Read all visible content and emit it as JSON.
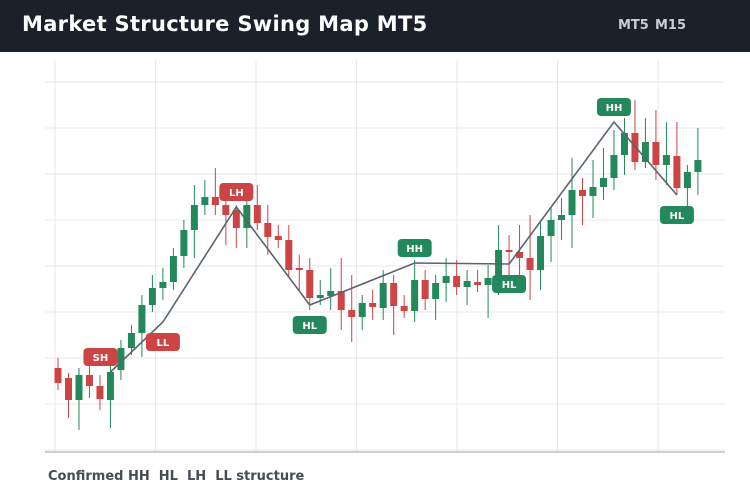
{
  "header": {
    "title": "Market Structure Swing Map MT5",
    "timeframes": [
      "MT5",
      "M15"
    ]
  },
  "footer": "Confirmed HH  HL  LH  LL structure",
  "chart_data": {
    "type": "candlestick",
    "grid": true,
    "ylim": [
      0,
      392
    ],
    "up_color": "#23885a",
    "down_color": "#cc4444",
    "line_color": "#5a6470",
    "open": [
      84,
      74,
      52,
      77,
      66,
      52,
      82,
      104,
      119,
      147,
      164,
      170,
      196,
      222,
      247,
      255,
      247,
      242,
      224,
      247,
      229,
      216,
      212,
      184,
      182,
      154,
      156,
      161,
      142,
      135,
      149,
      144,
      169,
      146,
      141,
      172,
      153,
      169,
      176,
      165,
      170,
      167,
      172,
      202,
      200,
      194,
      182,
      216,
      232,
      237,
      262,
      256,
      265,
      274,
      297,
      319,
      290,
      310,
      287,
      296,
      264,
      280
    ],
    "high": [
      94,
      79,
      84,
      87,
      77,
      87,
      112,
      127,
      157,
      177,
      184,
      204,
      232,
      267,
      272,
      284,
      262,
      247,
      257,
      267,
      247,
      227,
      227,
      197,
      194,
      172,
      184,
      194,
      177,
      157,
      162,
      182,
      177,
      157,
      192,
      182,
      177,
      194,
      192,
      182,
      182,
      187,
      227,
      217,
      227,
      237,
      230,
      244,
      254,
      294,
      274,
      292,
      304,
      322,
      334,
      352,
      334,
      342,
      330,
      330,
      287,
      324
    ],
    "low": [
      62,
      34,
      22,
      54,
      42,
      24,
      72,
      97,
      95,
      140,
      152,
      162,
      184,
      194,
      237,
      237,
      207,
      204,
      204,
      222,
      197,
      204,
      174,
      162,
      142,
      147,
      142,
      122,
      110,
      122,
      132,
      132,
      117,
      134,
      130,
      142,
      132,
      150,
      157,
      147,
      160,
      134,
      157,
      177,
      167,
      152,
      162,
      190,
      212,
      204,
      227,
      234,
      252,
      262,
      277,
      282,
      284,
      272,
      267,
      257,
      242,
      257
    ],
    "close": [
      69,
      52,
      77,
      66,
      53,
      80,
      104,
      119,
      147,
      164,
      170,
      196,
      222,
      247,
      255,
      247,
      237,
      224,
      247,
      229,
      215,
      212,
      182,
      182,
      154,
      157,
      161,
      142,
      135,
      149,
      145,
      169,
      146,
      141,
      172,
      153,
      169,
      176,
      165,
      171,
      167,
      174,
      202,
      200,
      194,
      182,
      216,
      232,
      237,
      262,
      256,
      265,
      274,
      297,
      319,
      290,
      310,
      287,
      297,
      264,
      280,
      292
    ],
    "swings": [
      {
        "label": "SH",
        "index": 5,
        "value": 80
      },
      {
        "label": "LL",
        "index": 10,
        "value": 130
      },
      {
        "label": "LH",
        "index": 17,
        "value": 245
      },
      {
        "label": "HL",
        "index": 24,
        "value": 147
      },
      {
        "label": "HH",
        "index": 34,
        "value": 189
      },
      {
        "label": "HL",
        "index": 43,
        "value": 188
      },
      {
        "label": "HH",
        "index": 53,
        "value": 330
      },
      {
        "label": "HL",
        "index": 59,
        "value": 257
      }
    ]
  }
}
